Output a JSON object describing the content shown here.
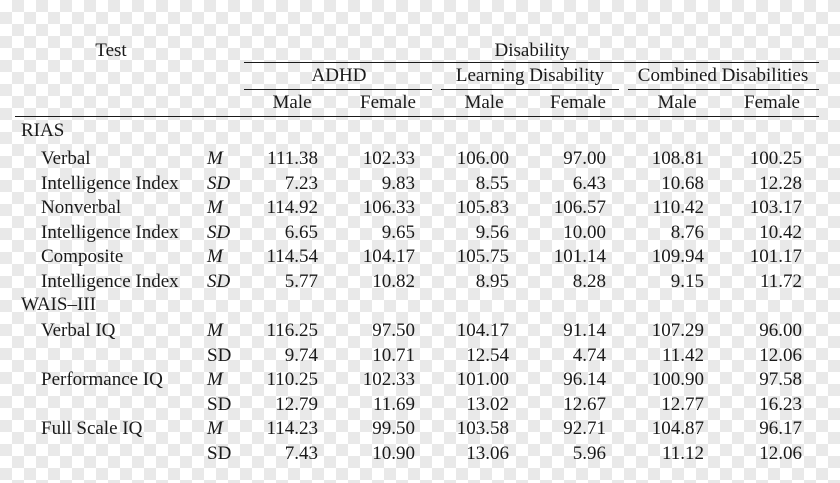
{
  "header": {
    "test": "Test",
    "disability": "Disability",
    "groups": [
      "ADHD",
      "Learning Disability",
      "Combined Disabilities"
    ],
    "sexes": [
      "Male",
      "Female",
      "Male",
      "Female",
      "Male",
      "Female"
    ]
  },
  "sections": [
    {
      "title": "RIAS",
      "rows": [
        {
          "label": "Verbal",
          "stat": "M",
          "values": [
            "111.38",
            "102.33",
            "106.00",
            "97.00",
            "108.81",
            "100.25"
          ]
        },
        {
          "label": "Intelligence Index",
          "stat": "SD",
          "values": [
            "7.23",
            "9.83",
            "8.55",
            "6.43",
            "10.68",
            "12.28"
          ]
        },
        {
          "label": "Nonverbal",
          "stat": "M",
          "values": [
            "114.92",
            "106.33",
            "105.83",
            "106.57",
            "110.42",
            "103.17"
          ]
        },
        {
          "label": "Intelligence Index",
          "stat": "SD",
          "values": [
            "6.65",
            "9.65",
            "9.56",
            "10.00",
            "8.76",
            "10.42"
          ]
        },
        {
          "label": "Composite",
          "stat": "M",
          "values": [
            "114.54",
            "104.17",
            "105.75",
            "101.14",
            "109.94",
            "101.17"
          ]
        },
        {
          "label": "Intelligence Index",
          "stat": "SD",
          "values": [
            "5.77",
            "10.82",
            "8.95",
            "8.28",
            "9.15",
            "11.72"
          ]
        }
      ]
    },
    {
      "title": "WAIS–III",
      "rows": [
        {
          "label": "Verbal IQ",
          "stat": "M",
          "values": [
            "116.25",
            "97.50",
            "104.17",
            "91.14",
            "107.29",
            "96.00"
          ]
        },
        {
          "label": "",
          "stat": "SD",
          "values": [
            "9.74",
            "10.71",
            "12.54",
            "4.74",
            "11.42",
            "12.06"
          ]
        },
        {
          "label": "Performance IQ",
          "stat": "M",
          "values": [
            "110.25",
            "102.33",
            "101.00",
            "96.14",
            "100.90",
            "97.58"
          ]
        },
        {
          "label": "",
          "stat": "SD",
          "values": [
            "12.79",
            "11.69",
            "13.02",
            "12.67",
            "12.77",
            "16.23"
          ]
        },
        {
          "label": "Full Scale IQ",
          "stat": "M",
          "values": [
            "114.23",
            "99.50",
            "103.58",
            "92.71",
            "104.87",
            "96.17"
          ]
        },
        {
          "label": "",
          "stat": "SD",
          "values": [
            "7.43",
            "10.90",
            "13.06",
            "5.96",
            "11.12",
            "12.06"
          ]
        }
      ]
    }
  ]
}
